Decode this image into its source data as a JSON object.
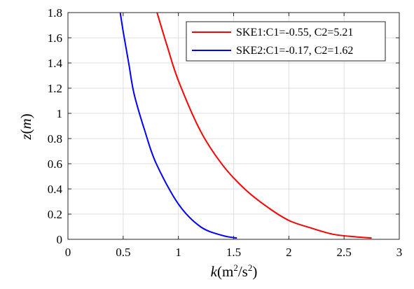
{
  "chart_data": {
    "type": "line",
    "xlabel": {
      "var": "k",
      "open": "(m",
      "sup1": "2",
      "mid": "/s",
      "sup2": "2",
      "close": ")"
    },
    "ylabel": {
      "var": "z",
      "open": "(",
      "unit": "m",
      "close": ")"
    },
    "xlim": [
      0,
      3
    ],
    "ylim": [
      0,
      1.8
    ],
    "xticks": [
      0,
      0.5,
      1,
      1.5,
      2,
      2.5,
      3
    ],
    "xtick_labels": [
      "0",
      "0.5",
      "1",
      "1.5",
      "2",
      "2.5",
      "3"
    ],
    "yticks": [
      0,
      0.2,
      0.4,
      0.6,
      0.8,
      1.0,
      1.2,
      1.4,
      1.6,
      1.8
    ],
    "ytick_labels": [
      "0",
      "0.2",
      "0.4",
      "0.6",
      "0.8",
      "1",
      "1.2",
      "1.4",
      "1.6",
      "1.8"
    ],
    "grid": true,
    "legend_position": "top-right",
    "series": [
      {
        "name": "SKE1:C1=-0.55, C2=5.21",
        "color": "#ff0000",
        "points": [
          [
            2.75,
            0.01
          ],
          [
            2.6,
            0.02
          ],
          [
            2.4,
            0.04
          ],
          [
            2.2,
            0.09
          ],
          [
            2.0,
            0.15
          ],
          [
            1.8,
            0.26
          ],
          [
            1.6,
            0.4
          ],
          [
            1.4,
            0.59
          ],
          [
            1.2,
            0.86
          ],
          [
            1.0,
            1.26
          ],
          [
            0.9,
            1.53
          ],
          [
            0.8,
            1.82
          ]
        ]
      },
      {
        "name": "SKE2:C1=-0.17, C2=1.62",
        "color": "#0000ff",
        "points": [
          [
            1.53,
            0.01
          ],
          [
            1.4,
            0.03
          ],
          [
            1.2,
            0.1
          ],
          [
            1.0,
            0.28
          ],
          [
            0.8,
            0.6
          ],
          [
            0.7,
            0.85
          ],
          [
            0.6,
            1.15
          ],
          [
            0.55,
            1.4
          ],
          [
            0.5,
            1.65
          ],
          [
            0.47,
            1.82
          ]
        ]
      }
    ]
  }
}
